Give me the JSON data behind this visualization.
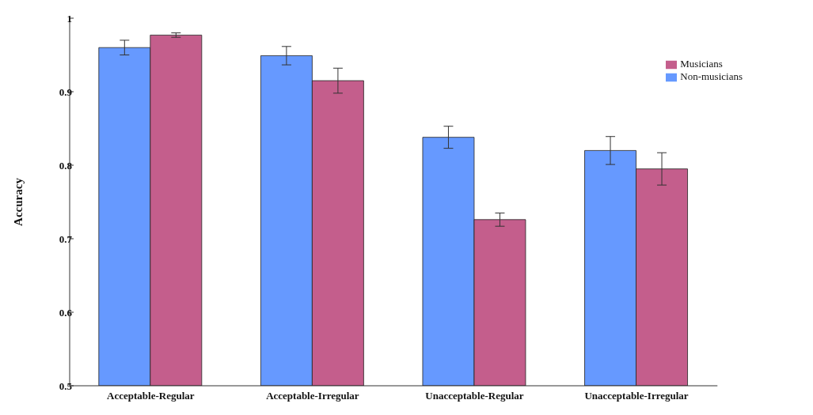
{
  "chart_data": {
    "type": "bar",
    "ylabel": "Accuracy",
    "categories": [
      "Acceptable-Regular",
      "Acceptable-Irregular",
      "Unacceptable-Regular",
      "Unacceptable-Irregular"
    ],
    "series": [
      {
        "name": "Non-musicians",
        "color": "#6699ff",
        "values": [
          0.96,
          0.949,
          0.838,
          0.82
        ],
        "errors": [
          0.01,
          0.0125,
          0.015,
          0.019
        ]
      },
      {
        "name": "Musicians",
        "color": "#c45e8c",
        "values": [
          0.977,
          0.915,
          0.726,
          0.795
        ],
        "errors": [
          0.003,
          0.017,
          0.009,
          0.022
        ]
      }
    ],
    "ylim": [
      0.5,
      1
    ],
    "yticks": [
      0.5,
      0.6,
      0.7,
      0.8,
      0.9,
      1
    ],
    "grid": false,
    "legend": "top right"
  }
}
